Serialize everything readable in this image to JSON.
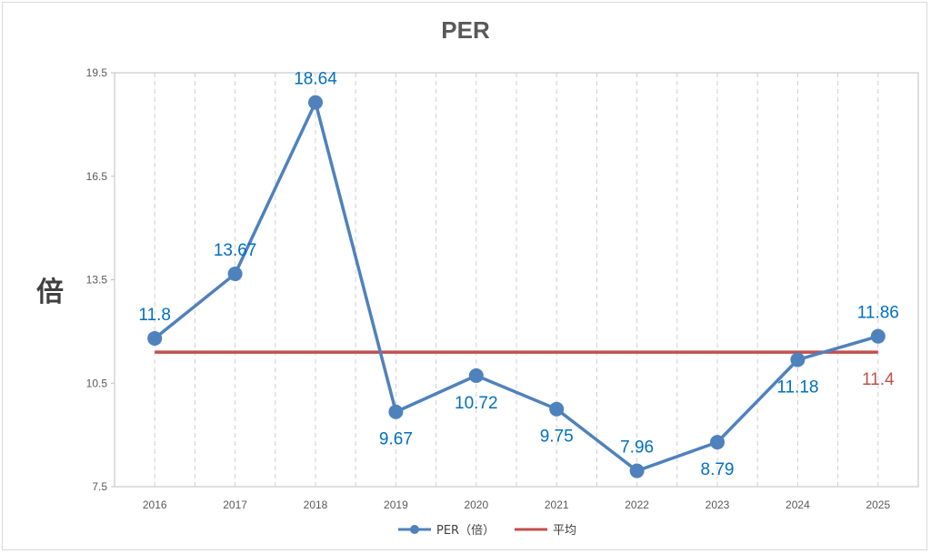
{
  "chart_data": {
    "type": "line",
    "title": "PER",
    "ylabel": "倍",
    "xlabel": "",
    "ylim": [
      7.5,
      19.5
    ],
    "yticks": [
      "19.5",
      "16.5",
      "13.5",
      "10.5",
      "7.5"
    ],
    "categories": [
      "2016",
      "2017",
      "2018",
      "2019",
      "2020",
      "2021",
      "2022",
      "2023",
      "2024",
      "2025"
    ],
    "series": [
      {
        "name": "PER（倍）",
        "color": "#4f81bd",
        "values": [
          11.8,
          13.67,
          18.64,
          9.67,
          10.72,
          9.75,
          7.96,
          8.79,
          11.18,
          11.86
        ],
        "labels": [
          "11.8",
          "13.67",
          "18.64",
          "9.67",
          "10.72",
          "9.75",
          "7.96",
          "8.79",
          "11.18",
          "11.86"
        ]
      },
      {
        "name": "平均",
        "color": "#c0504d",
        "value": 11.4,
        "label": "11.4"
      }
    ],
    "legend": "bottom",
    "grid": "vertical-dashed"
  }
}
